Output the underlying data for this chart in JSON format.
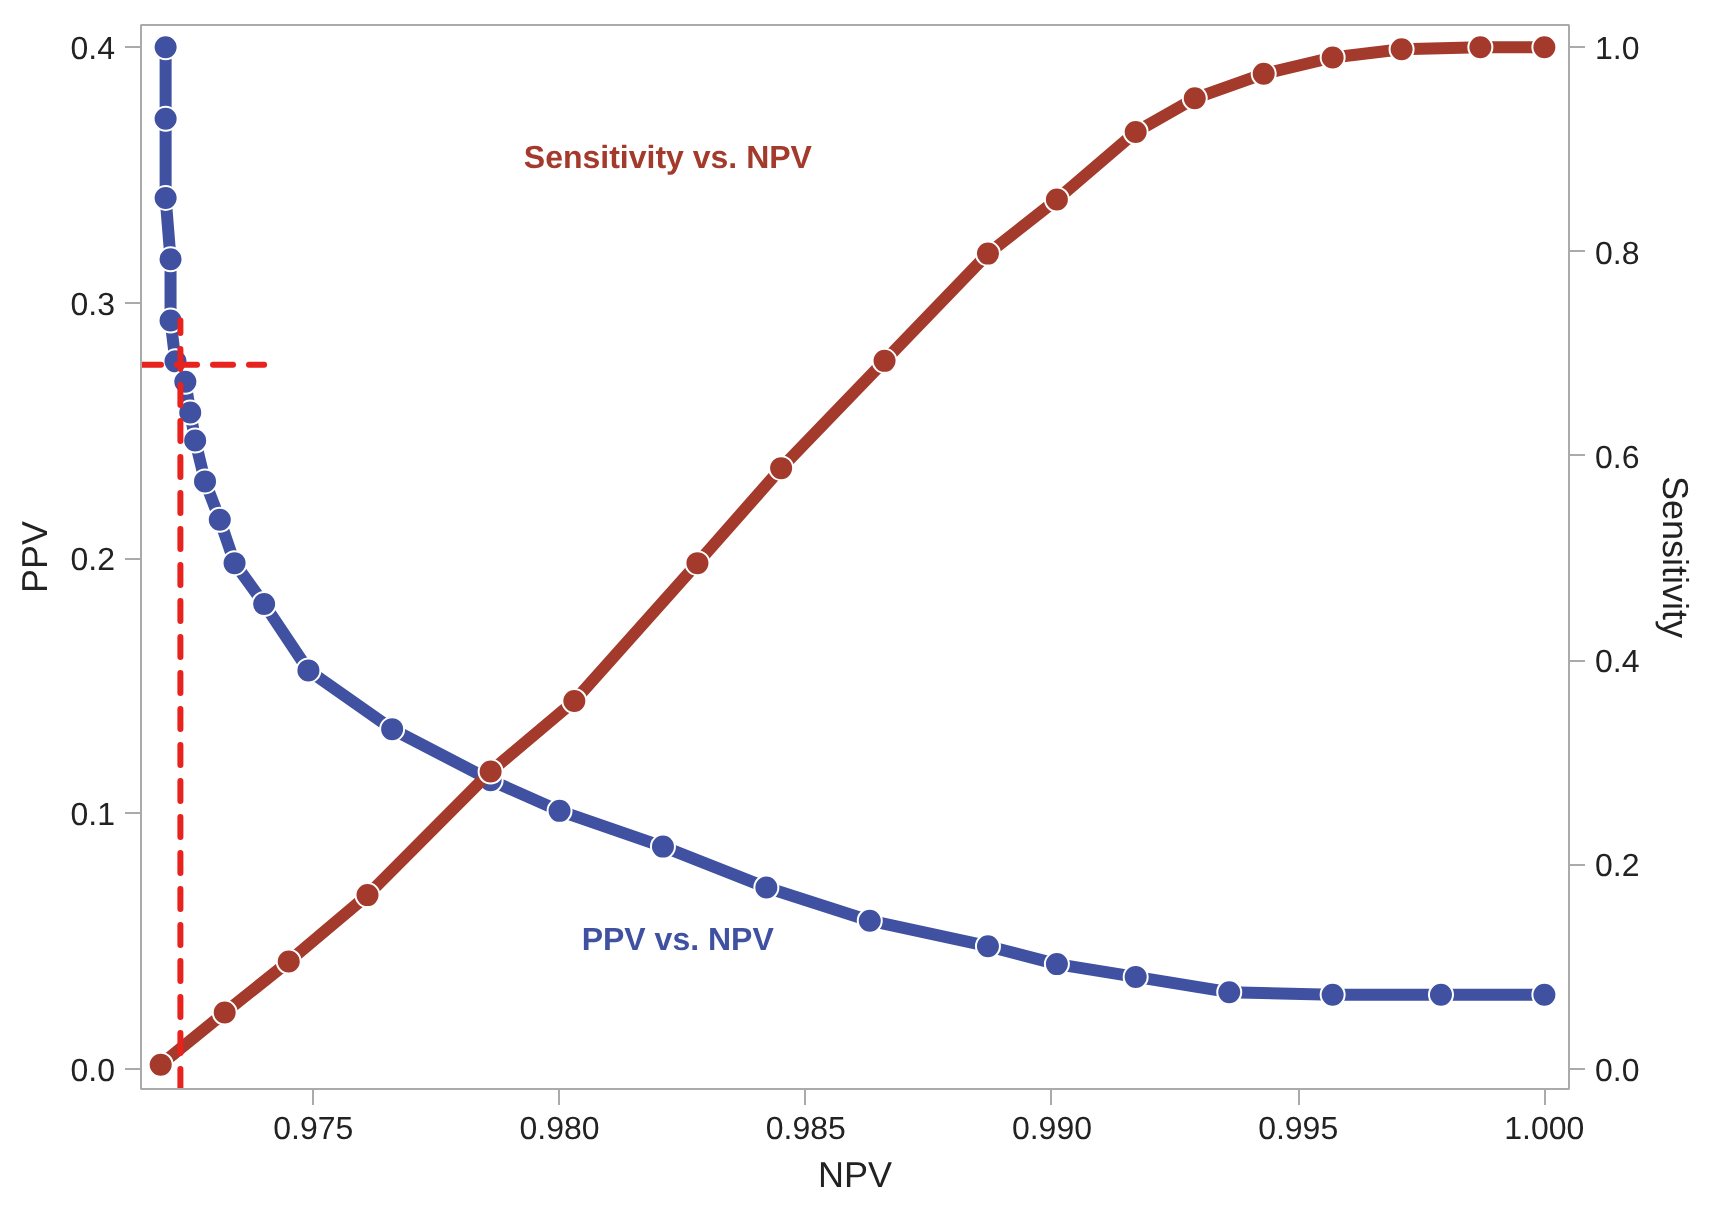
{
  "chart_data": {
    "type": "line",
    "xlabel": "NPV",
    "ylabel": "PPV",
    "y2label": "Sensitivity",
    "xlim": [
      0.9715,
      1.0005
    ],
    "ylim": [
      -0.0079,
      0.4087
    ],
    "y2lim": [
      -0.0198,
      1.0218
    ],
    "xticks": [
      {
        "value": 0.975,
        "label": "0.975"
      },
      {
        "value": 0.98,
        "label": "0.980"
      },
      {
        "value": 0.985,
        "label": "0.985"
      },
      {
        "value": 0.99,
        "label": "0.990"
      },
      {
        "value": 0.995,
        "label": "0.995"
      },
      {
        "value": 1.0,
        "label": "1.000"
      }
    ],
    "yticks": [
      {
        "value": 0,
        "label": "0.0"
      },
      {
        "value": 0.1,
        "label": "0.1"
      },
      {
        "value": 0.2,
        "label": "0.2"
      },
      {
        "value": 0.3,
        "label": "0.3"
      },
      {
        "value": 0.4,
        "label": "0.4"
      }
    ],
    "y2ticks": [
      {
        "value": 0,
        "label": "0.0"
      },
      {
        "value": 0.2,
        "label": "0.2"
      },
      {
        "value": 0.4,
        "label": "0.4"
      },
      {
        "value": 0.6,
        "label": "0.6"
      },
      {
        "value": 0.8,
        "label": "0.8"
      },
      {
        "value": 1.0,
        "label": "1.0"
      }
    ],
    "grid": false,
    "marker": "circle",
    "series": [
      {
        "name": "PPV vs. NPV",
        "color": "#3f51a0",
        "x": [
          0.972,
          0.972,
          0.972,
          0.9721,
          0.9721,
          0.9722,
          0.9724,
          0.9725,
          0.9726,
          0.9728,
          0.9731,
          0.9734,
          0.974,
          0.9749,
          0.9766,
          0.9786,
          0.98,
          0.9821,
          0.9842,
          0.9863,
          0.9887,
          0.9901,
          0.9917,
          0.9936,
          0.9957,
          0.9979,
          1.0
        ],
        "values": [
          0.4,
          0.372,
          0.341,
          0.317,
          0.293,
          0.277,
          0.269,
          0.257,
          0.246,
          0.23,
          0.215,
          0.198,
          0.182,
          0.156,
          0.133,
          0.113,
          0.101,
          0.087,
          0.071,
          0.058,
          0.048,
          0.041,
          0.036,
          0.03,
          0.029,
          0.029,
          0.029
        ]
      },
      {
        "name": "Sensitivity vs. NPV",
        "color": "#a33a2c",
        "axis": "y2",
        "x": [
          0.9719,
          0.9732,
          0.9745,
          0.9761,
          0.9786,
          0.9803,
          0.9828,
          0.9845,
          0.9866,
          0.9887,
          0.9901,
          0.9917,
          0.9929,
          0.9943,
          0.9957,
          0.9971,
          0.9987,
          1.0
        ],
        "values": [
          0.004,
          0.055,
          0.105,
          0.17,
          0.291,
          0.36,
          0.495,
          0.588,
          0.693,
          0.798,
          0.851,
          0.917,
          0.95,
          0.974,
          0.99,
          0.998,
          1.0,
          1.0
        ]
      },
      {
        "color": "#e8231e",
        "type": "line",
        "marker": "none",
        "line_style": "dashed",
        "x": [
          0.9715,
          0.974
        ],
        "values": [
          0.2757,
          0.2757
        ]
      },
      {
        "color": "#e8231e",
        "type": "line",
        "marker": "none",
        "line_style": "dashed",
        "x": [
          0.9723,
          0.9723
        ],
        "values": [
          -0.0079,
          0.293
        ]
      }
    ]
  }
}
